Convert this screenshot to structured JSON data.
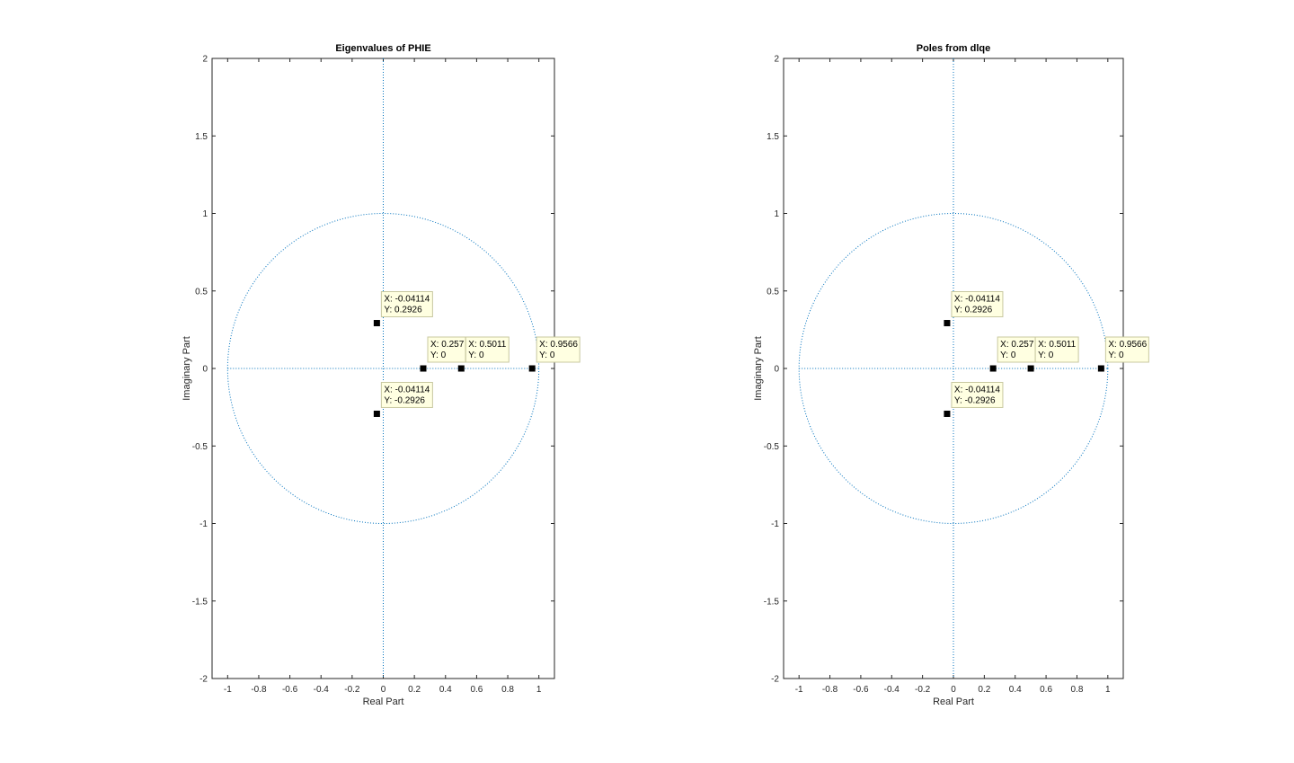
{
  "chart_data": [
    {
      "type": "scatter",
      "title": "Eigenvalues of PHIE",
      "xlabel": "Real Part",
      "ylabel": "Imaginary Part",
      "xlim": [
        -1.1,
        1.1
      ],
      "ylim": [
        -2,
        2
      ],
      "xticks": [
        -1,
        -0.8,
        -0.6,
        -0.4,
        -0.2,
        0,
        0.2,
        0.4,
        0.6,
        0.8,
        1
      ],
      "xtick_labels": [
        "-1",
        "-0.8",
        "-0.6",
        "-0.4",
        "-0.2",
        "0",
        "0.2",
        "0.4",
        "0.6",
        "0.8",
        "1"
      ],
      "yticks": [
        -2,
        -1.5,
        -1,
        -0.5,
        0,
        0.5,
        1,
        1.5,
        2
      ],
      "ytick_labels": [
        "-2",
        "-1.5",
        "-1",
        "-0.5",
        "0",
        "0.5",
        "1",
        "1.5",
        "2"
      ],
      "grid": false,
      "unit_circle": true,
      "axis_lines": true,
      "marker": "square",
      "marker_color": "#000000",
      "guide_color": "#0072bd",
      "tooltip_bg": "#ffffe1",
      "points": [
        {
          "x": -0.04114,
          "y": 0.2926,
          "tip": [
            "X: -0.04114",
            "Y: 0.2926"
          ]
        },
        {
          "x": -0.04114,
          "y": -0.2926,
          "tip": [
            "X: -0.04114",
            "Y: -0.2926"
          ]
        },
        {
          "x": 0.257,
          "y": 0,
          "tip": [
            "X: 0.257",
            "Y: 0"
          ]
        },
        {
          "x": 0.5011,
          "y": 0,
          "tip": [
            "X: 0.5011",
            "Y: 0"
          ]
        },
        {
          "x": 0.9566,
          "y": 0,
          "tip": [
            "X: 0.9566",
            "Y: 0"
          ]
        }
      ]
    },
    {
      "type": "scatter",
      "title": "Poles from dlqe",
      "xlabel": "Real Part",
      "ylabel": "Imaginary Part",
      "xlim": [
        -1.1,
        1.1
      ],
      "ylim": [
        -2,
        2
      ],
      "xticks": [
        -1,
        -0.8,
        -0.6,
        -0.4,
        -0.2,
        0,
        0.2,
        0.4,
        0.6,
        0.8,
        1
      ],
      "xtick_labels": [
        "-1",
        "-0.8",
        "-0.6",
        "-0.4",
        "-0.2",
        "0",
        "0.2",
        "0.4",
        "0.6",
        "0.8",
        "1"
      ],
      "yticks": [
        -2,
        -1.5,
        -1,
        -0.5,
        0,
        0.5,
        1,
        1.5,
        2
      ],
      "ytick_labels": [
        "-2",
        "-1.5",
        "-1",
        "-0.5",
        "0",
        "0.5",
        "1",
        "1.5",
        "2"
      ],
      "grid": false,
      "unit_circle": true,
      "axis_lines": true,
      "marker": "square",
      "marker_color": "#000000",
      "guide_color": "#0072bd",
      "tooltip_bg": "#ffffe1",
      "points": [
        {
          "x": -0.04114,
          "y": 0.2926,
          "tip": [
            "X: -0.04114",
            "Y: 0.2926"
          ]
        },
        {
          "x": -0.04114,
          "y": -0.2926,
          "tip": [
            "X: -0.04114",
            "Y: -0.2926"
          ]
        },
        {
          "x": 0.257,
          "y": 0,
          "tip": [
            "X: 0.257",
            "Y: 0"
          ]
        },
        {
          "x": 0.5011,
          "y": 0,
          "tip": [
            "X: 0.5011",
            "Y: 0"
          ]
        },
        {
          "x": 0.9566,
          "y": 0,
          "tip": [
            "X: 0.9566",
            "Y: 0"
          ]
        }
      ]
    }
  ]
}
